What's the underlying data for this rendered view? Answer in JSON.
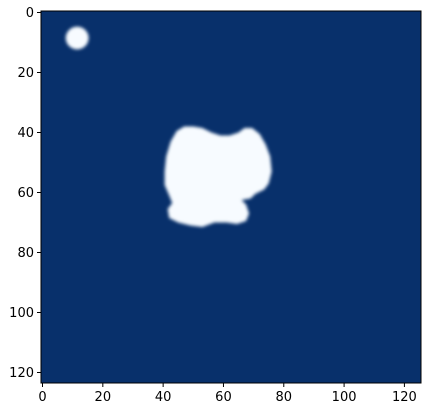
{
  "chart_data": {
    "type": "heatmap",
    "title": "",
    "xlabel": "",
    "ylabel": "",
    "image_shape": {
      "rows": 124,
      "cols": 126
    },
    "colormap": "Blues",
    "colors": {
      "background": "#08306b",
      "blob": "#f7fbff"
    },
    "xlim": [
      -0.5,
      125.5
    ],
    "ylim": [
      123.5,
      -0.5
    ],
    "xticks": [
      {
        "value": 0,
        "label": "0"
      },
      {
        "value": 20,
        "label": "20"
      },
      {
        "value": 40,
        "label": "40"
      },
      {
        "value": 60,
        "label": "60"
      },
      {
        "value": 80,
        "label": "80"
      },
      {
        "value": 100,
        "label": "100"
      },
      {
        "value": 120,
        "label": "120"
      }
    ],
    "yticks": [
      {
        "value": 0,
        "label": "0"
      },
      {
        "value": 20,
        "label": "20"
      },
      {
        "value": 40,
        "label": "40"
      },
      {
        "value": 60,
        "label": "60"
      },
      {
        "value": 80,
        "label": "80"
      },
      {
        "value": 100,
        "label": "100"
      },
      {
        "value": 120,
        "label": "120"
      }
    ],
    "regions": [
      {
        "name": "small-blob",
        "shape": "circle",
        "center": [
          11.5,
          8.5
        ],
        "radius": 3.8
      },
      {
        "name": "large-blob",
        "shape": "polygon",
        "points": [
          [
            42.5,
            43
          ],
          [
            44.5,
            39.5
          ],
          [
            47,
            38
          ],
          [
            50,
            38
          ],
          [
            53,
            38.5
          ],
          [
            56,
            40
          ],
          [
            59,
            41
          ],
          [
            62,
            41
          ],
          [
            65,
            40
          ],
          [
            67,
            38.5
          ],
          [
            69.5,
            38.5
          ],
          [
            72,
            40.5
          ],
          [
            74,
            44
          ],
          [
            75.5,
            48
          ],
          [
            76,
            53
          ],
          [
            75,
            57
          ],
          [
            73.5,
            59
          ],
          [
            70.5,
            60.5
          ],
          [
            69,
            62
          ],
          [
            66,
            62.5
          ],
          [
            67.5,
            64
          ],
          [
            68.5,
            67
          ],
          [
            67.5,
            69.5
          ],
          [
            64.5,
            70.5
          ],
          [
            61,
            70
          ],
          [
            57,
            70
          ],
          [
            53,
            71.5
          ],
          [
            49,
            71
          ],
          [
            45,
            70
          ],
          [
            42,
            68.5
          ],
          [
            41.5,
            65.5
          ],
          [
            43,
            63.5
          ],
          [
            42,
            61
          ],
          [
            40.5,
            57.5
          ],
          [
            40.5,
            53
          ],
          [
            41,
            48
          ]
        ]
      }
    ]
  }
}
